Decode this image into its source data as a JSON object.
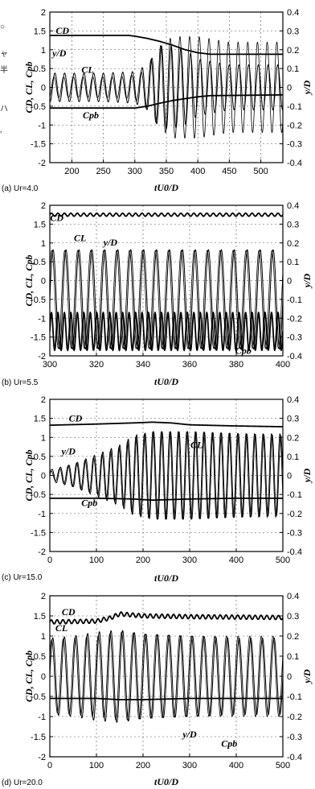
{
  "edge_text": [
    "○",
    "ャ",
    "半",
    "ハ",
    ","
  ],
  "chart_data": [
    {
      "type": "line",
      "caption": "(a) Ur=4.0",
      "xlabel": "tU0/D",
      "ylabel": "CD, CL, Cpb",
      "ylabel_right": "y/D",
      "xlim": [
        165,
        535
      ],
      "ylim": [
        -2,
        2
      ],
      "ylim_right": [
        -0.4,
        0.4
      ],
      "xticks": [
        "200",
        "250",
        "300",
        "350",
        "400",
        "450",
        "500"
      ],
      "yticks": [
        "-2",
        "-1.5",
        "-1",
        "-0.5",
        "0",
        "0.5",
        "1",
        "1.5",
        "2"
      ],
      "yticks_right": [
        "-0.4",
        "-0.3",
        "-0.2",
        "-0.1",
        "0",
        "0.1",
        "0.2",
        "0.3",
        "0.4"
      ],
      "grid": true,
      "series": [
        {
          "name": "CD",
          "axis": "left",
          "x": [
            165,
            290,
            300,
            320,
            340,
            360,
            380,
            400,
            420,
            535
          ],
          "y": [
            1.38,
            1.38,
            1.36,
            1.3,
            1.22,
            1.12,
            1.0,
            0.92,
            0.88,
            0.88
          ]
        },
        {
          "name": "CL",
          "axis": "left",
          "x": [
            165,
            200,
            250,
            300,
            320,
            340,
            360,
            380,
            400,
            450,
            535
          ],
          "amplitude": [
            0.38,
            0.38,
            0.38,
            0.42,
            0.6,
            1.1,
            1.1,
            1.0,
            0.75,
            0.6,
            0.6
          ],
          "frequency": 0.065
        },
        {
          "name": "y/D",
          "axis": "right",
          "x": [
            165,
            200,
            250,
            290,
            310,
            320,
            340,
            360,
            400,
            450,
            535
          ],
          "amplitude": [
            0.055,
            0.055,
            0.055,
            0.06,
            0.08,
            0.12,
            0.22,
            0.27,
            0.27,
            0.24,
            0.24
          ],
          "frequency": 0.065
        },
        {
          "name": "Cpb",
          "axis": "left",
          "x": [
            165,
            290,
            300,
            320,
            340,
            360,
            380,
            400,
            420,
            535
          ],
          "y": [
            -0.55,
            -0.55,
            -0.55,
            -0.5,
            -0.42,
            -0.35,
            -0.3,
            -0.25,
            -0.22,
            -0.2
          ]
        }
      ],
      "annotations": [
        {
          "text": "CD",
          "x": 185,
          "y": 1.42
        },
        {
          "text": "y/D",
          "x": 180,
          "y": 0.82
        },
        {
          "text": "CL",
          "x": 225,
          "y": 0.38
        },
        {
          "text": "Cpb",
          "x": 230,
          "y": -0.82
        }
      ]
    },
    {
      "type": "line",
      "caption": "(b) Ur=5.5",
      "xlabel": "tU0/D",
      "ylabel": "CD, CL, Cpb",
      "ylabel_right": "y/D",
      "xlim": [
        300,
        400
      ],
      "ylim": [
        -2,
        2
      ],
      "ylim_right": [
        -0.4,
        0.4
      ],
      "xticks": [
        "300",
        "320",
        "340",
        "360",
        "380",
        "400"
      ],
      "yticks": [
        "-2",
        "-1.5",
        "-1",
        "-0.5",
        "0",
        "0.5",
        "1",
        "1.5",
        "2"
      ],
      "yticks_right": [
        "-0.4",
        "-0.3",
        "-0.2",
        "-0.1",
        "0",
        "0.1",
        "0.2",
        "0.3",
        "0.4"
      ],
      "grid": true,
      "series": [
        {
          "name": "CD",
          "axis": "left",
          "x": [
            300,
            400
          ],
          "y": [
            1.75,
            1.75
          ],
          "ripple": 0.04,
          "frequency": 0.36
        },
        {
          "name": "CL",
          "axis": "left",
          "x": [
            300,
            400
          ],
          "mean": -0.5,
          "amplitude": 1.32,
          "frequency": 0.18
        },
        {
          "name": "y/D",
          "axis": "right",
          "x": [
            300,
            400
          ],
          "mean": -0.1,
          "amplitude": 0.26,
          "frequency": 0.18
        },
        {
          "name": "Cpb",
          "axis": "left",
          "x": [
            300,
            400
          ],
          "mean": -1.35,
          "amplitude": 0.5,
          "frequency": 0.36
        }
      ],
      "annotations": [
        {
          "text": "CD",
          "x": 303,
          "y": 1.58
        },
        {
          "text": "CL",
          "x": 313,
          "y": 1.05
        },
        {
          "text": "y/D",
          "x": 326,
          "y": 0.93
        },
        {
          "text": "Cpb",
          "x": 383,
          "y": -1.95
        }
      ]
    },
    {
      "type": "line",
      "caption": "(c) Ur=15.0",
      "xlabel": "tU0/D",
      "ylabel": "CD, CL, Cpb",
      "ylabel_right": "y/D",
      "xlim": [
        0,
        500
      ],
      "ylim": [
        -2,
        2
      ],
      "ylim_right": [
        -0.4,
        0.4
      ],
      "xticks": [
        "0",
        "100",
        "200",
        "300",
        "400",
        "500"
      ],
      "yticks": [
        "-2",
        "-1.5",
        "-1",
        "-0.5",
        "0",
        "0.5",
        "1",
        "1.5",
        "2"
      ],
      "yticks_right": [
        "-0.4",
        "-0.3",
        "-0.2",
        "-0.1",
        "0",
        "0.1",
        "0.2",
        "0.3",
        "0.4"
      ],
      "grid": true,
      "series": [
        {
          "name": "CD",
          "axis": "left",
          "x": [
            0,
            100,
            180,
            220,
            260,
            300,
            400,
            500
          ],
          "y": [
            1.32,
            1.35,
            1.38,
            1.4,
            1.38,
            1.33,
            1.3,
            1.28
          ]
        },
        {
          "name": "CL",
          "axis": "left",
          "x": [
            0,
            50,
            100,
            150,
            180,
            220,
            300,
            400,
            500
          ],
          "amplitude": [
            0.15,
            0.3,
            0.55,
            0.8,
            1.05,
            1.15,
            1.15,
            1.1,
            1.05
          ],
          "frequency": 0.055
        },
        {
          "name": "y/D",
          "axis": "right",
          "x": [
            0,
            50,
            100,
            150,
            180,
            220,
            300,
            400,
            500
          ],
          "amplitude": [
            0.02,
            0.06,
            0.1,
            0.15,
            0.2,
            0.23,
            0.23,
            0.22,
            0.22
          ],
          "frequency": 0.055
        },
        {
          "name": "Cpb",
          "axis": "left",
          "x": [
            0,
            100,
            180,
            220,
            300,
            400,
            500
          ],
          "y": [
            -0.6,
            -0.6,
            -0.62,
            -0.65,
            -0.62,
            -0.6,
            -0.6
          ]
        }
      ],
      "annotations": [
        {
          "text": "CD",
          "x": 55,
          "y": 1.42
        },
        {
          "text": "CL",
          "x": 315,
          "y": 0.72
        },
        {
          "text": "y/D",
          "x": 40,
          "y": 0.55
        },
        {
          "text": "Cpb",
          "x": 85,
          "y": -0.8
        }
      ]
    },
    {
      "type": "line",
      "caption": "(d) Ur=20.0",
      "xlabel": "tU0/D",
      "ylabel": "CD, CL, Cpb",
      "ylabel_right": "y/D",
      "xlim": [
        0,
        500
      ],
      "ylim": [
        -2,
        2
      ],
      "ylim_right": [
        -0.4,
        0.4
      ],
      "xticks": [
        "0",
        "100",
        "200",
        "300",
        "400",
        "500"
      ],
      "yticks": [
        "-2",
        "-1.5",
        "-1",
        "-0.5",
        "0",
        "0.5",
        "1",
        "1.5",
        "2"
      ],
      "yticks_right": [
        "-0.4",
        "-0.3",
        "-0.2",
        "-0.1",
        "0",
        "0.1",
        "0.2",
        "0.3",
        "0.4"
      ],
      "grid": true,
      "series": [
        {
          "name": "CD",
          "axis": "left",
          "x": [
            0,
            100,
            130,
            150,
            200,
            300,
            400,
            500
          ],
          "y": [
            1.35,
            1.37,
            1.45,
            1.55,
            1.5,
            1.48,
            1.47,
            1.46
          ],
          "ripple": 0.05,
          "frequency": 0.08
        },
        {
          "name": "CL",
          "axis": "left",
          "x": [
            0,
            50,
            100,
            150,
            200,
            300,
            400,
            500
          ],
          "amplitude": [
            0.95,
            1.0,
            1.1,
            1.15,
            1.05,
            1.0,
            0.95,
            0.95
          ],
          "frequency": 0.04
        },
        {
          "name": "y/D",
          "axis": "right",
          "x": [
            0,
            50,
            100,
            150,
            200,
            300,
            400,
            500
          ],
          "amplitude": [
            0.18,
            0.19,
            0.2,
            0.22,
            0.21,
            0.2,
            0.2,
            0.2
          ],
          "frequency": 0.04
        },
        {
          "name": "Cpb",
          "axis": "left",
          "x": [
            0,
            100,
            150,
            200,
            300,
            400,
            500
          ],
          "y": [
            -0.55,
            -0.55,
            -0.58,
            -0.58,
            -0.55,
            -0.55,
            -0.55
          ]
        }
      ],
      "annotations": [
        {
          "text": "CD",
          "x": 40,
          "y": 1.52
        },
        {
          "text": "CL",
          "x": 25,
          "y": 1.12
        },
        {
          "text": "y/D",
          "x": 300,
          "y": -1.52
        },
        {
          "text": "Cpb",
          "x": 385,
          "y": -1.75
        }
      ]
    }
  ]
}
